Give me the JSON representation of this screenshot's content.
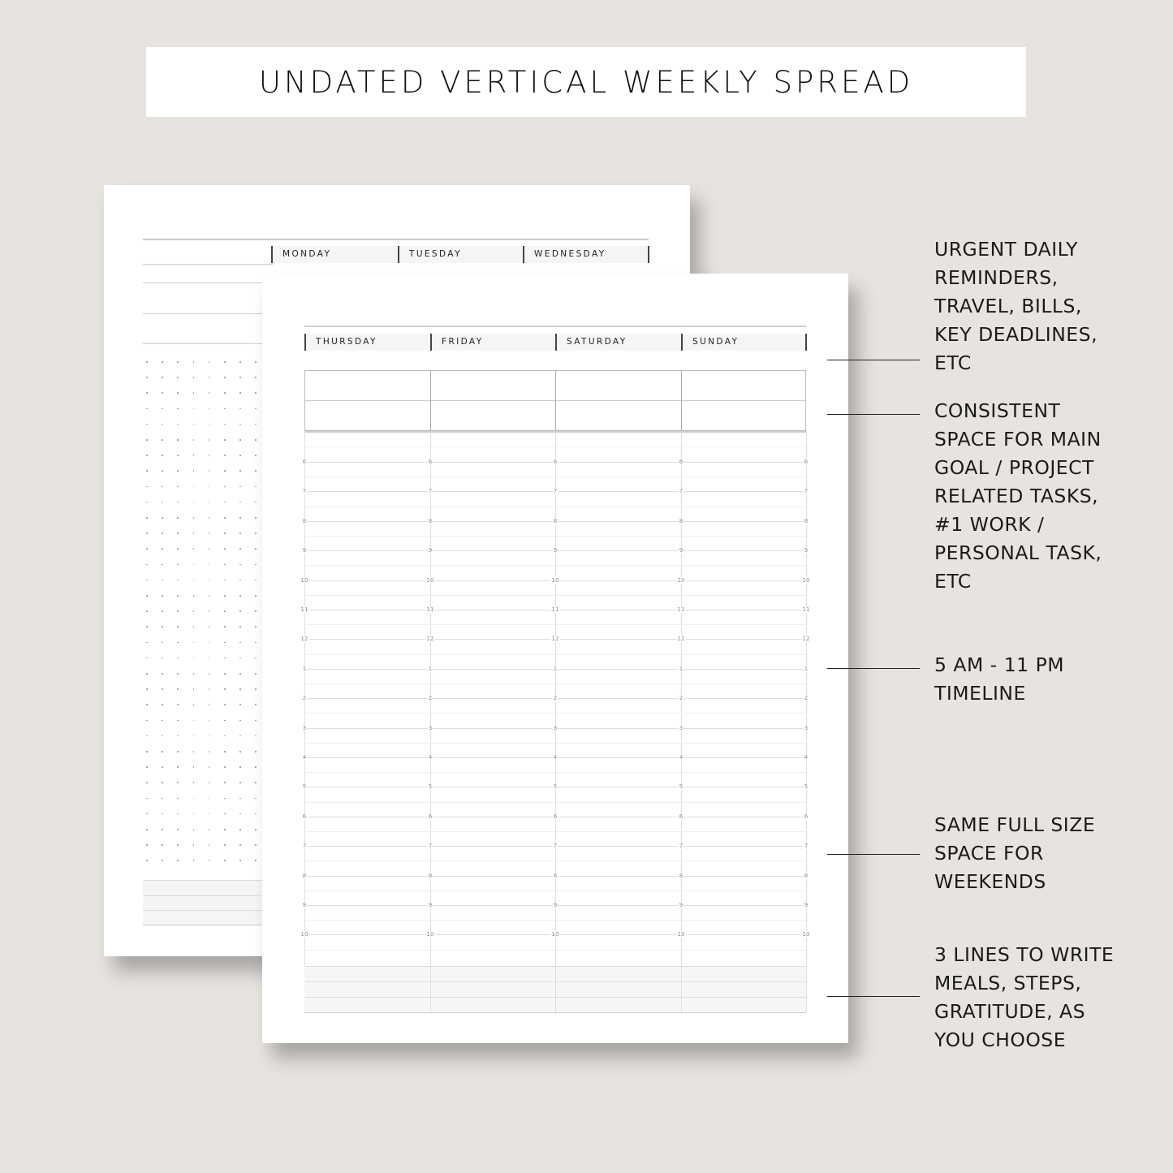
{
  "title": "UNDATED VERTICAL WEEKLY SPREAD",
  "back_page": {
    "days": [
      "MONDAY",
      "TUESDAY",
      "WEDNESDAY"
    ]
  },
  "front_page": {
    "days": [
      "THURSDAY",
      "FRIDAY",
      "SATURDAY",
      "SUNDAY"
    ],
    "hours": [
      "6",
      "7",
      "8",
      "9",
      "10",
      "11",
      "12",
      "1",
      "2",
      "3",
      "4",
      "5",
      "6",
      "7",
      "8",
      "9",
      "10"
    ]
  },
  "annotations": [
    "URGENT DAILY\nREMINDERS,\nTRAVEL, BILLS,\nKEY DEADLINES,\nETC",
    "CONSISTENT\nSPACE FOR MAIN\nGOAL / PROJECT\nRELATED TASKS,\n#1 WORK /\nPERSONAL TASK,\nETC",
    "5 AM - 11 PM\nTIMELINE",
    "SAME FULL SIZE\nSPACE FOR\nWEEKENDS",
    "3 LINES TO WRITE\nMEALS, STEPS,\nGRATITUDE, AS\nYOU CHOOSE"
  ]
}
